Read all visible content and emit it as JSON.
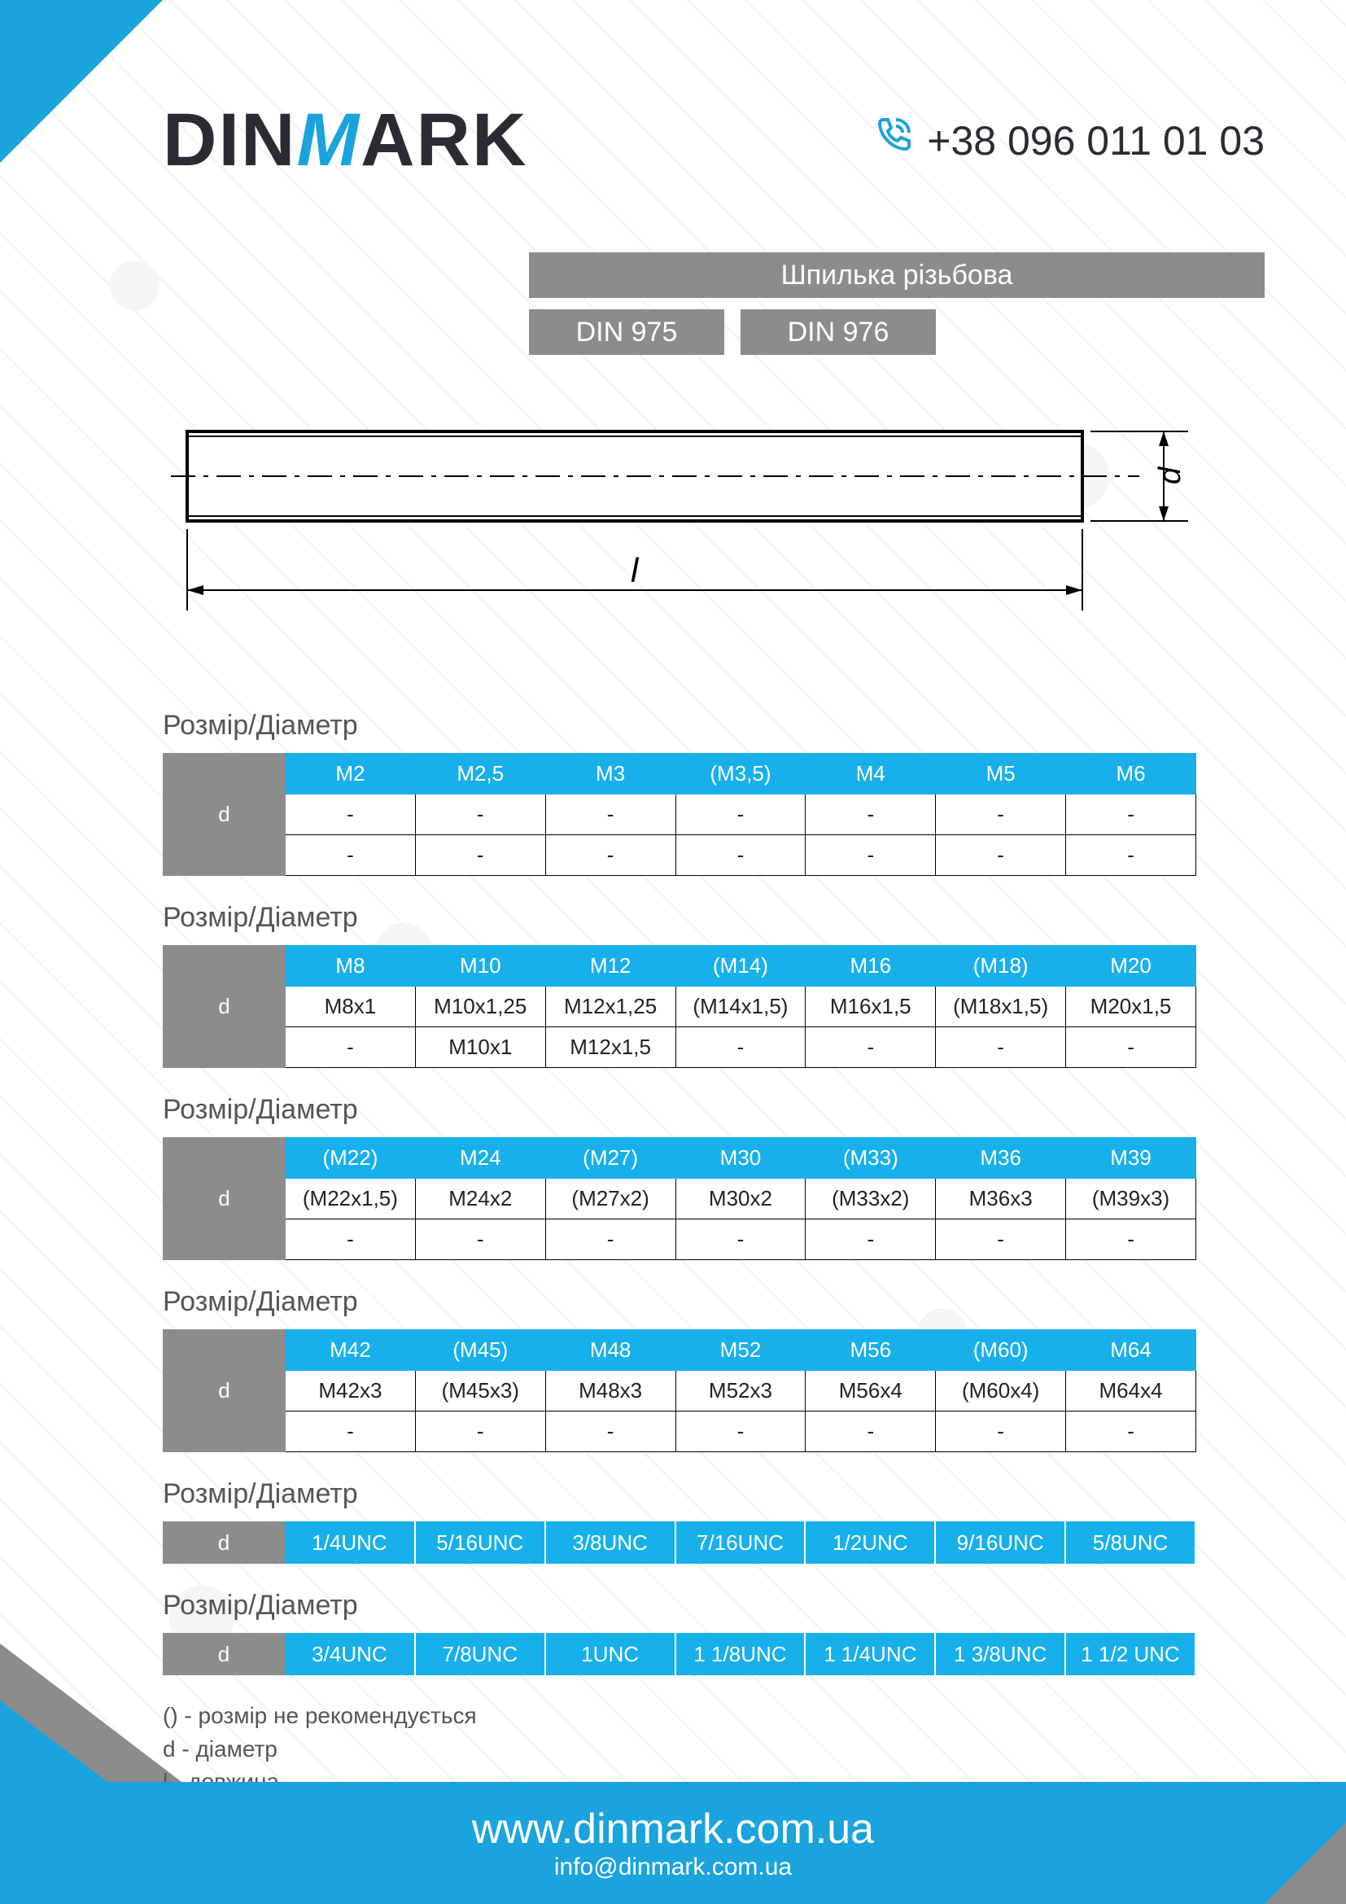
{
  "colors": {
    "brand_blue": "#1aa3dd",
    "brand_gray": "#8c8c8c",
    "dark_text": "#2b2b33",
    "light_gray": "#777777",
    "header_blue": "#18a4de",
    "table_header_blue": "#18b0ea",
    "row_label_gray": "#8c8c8c",
    "footer_blue": "#0f87b8"
  },
  "logo": {
    "pre": "DIN",
    "m": "M",
    "post": "ARK",
    "pre_color": "#2b2b33",
    "m_color": "#1aa3dd",
    "post_color": "#2b2b33"
  },
  "phone": {
    "text": "+38 096 011 01 03",
    "icon": "phone-icon",
    "color": "#2b2b33",
    "icon_color": "#1aa3dd"
  },
  "title": "Шпилька різьбова",
  "din_labels": [
    "DIN 975",
    "DIN 976"
  ],
  "diagram": {
    "l_label": "l",
    "d_label": "d",
    "stroke": "#000000",
    "stroke_width": 3
  },
  "section_title": "Розмір/Діаметр",
  "row_label": "d",
  "tables": [
    {
      "headers": [
        "M2",
        "M2,5",
        "M3",
        "(M3,5)",
        "M4",
        "M5",
        "M6"
      ],
      "rows": [
        [
          "-",
          "-",
          "-",
          "-",
          "-",
          "-",
          "-"
        ],
        [
          "-",
          "-",
          "-",
          "-",
          "-",
          "-",
          "-"
        ]
      ]
    },
    {
      "headers": [
        "M8",
        "M10",
        "M12",
        "(M14)",
        "M16",
        "(M18)",
        "M20"
      ],
      "rows": [
        [
          "M8x1",
          "M10x1,25",
          "M12x1,25",
          "(M14x1,5)",
          "M16x1,5",
          "(M18x1,5)",
          "M20x1,5"
        ],
        [
          "-",
          "M10x1",
          "M12x1,5",
          "-",
          "-",
          "-",
          "-"
        ]
      ]
    },
    {
      "headers": [
        "(M22)",
        "M24",
        "(M27)",
        "M30",
        "(M33)",
        "M36",
        "M39"
      ],
      "rows": [
        [
          "(M22x1,5)",
          "M24x2",
          "(M27x2)",
          "M30x2",
          "(M33x2)",
          "M36x3",
          "(M39x3)"
        ],
        [
          "-",
          "-",
          "-",
          "-",
          "-",
          "-",
          "-"
        ]
      ]
    },
    {
      "headers": [
        "M42",
        "(M45)",
        "M48",
        "M52",
        "M56",
        "(M60)",
        "M64"
      ],
      "rows": [
        [
          "M42x3",
          "(M45x3)",
          "M48x3",
          "M52x3",
          "M56x4",
          "(M60x4)",
          "M64x4"
        ],
        [
          "-",
          "-",
          "-",
          "-",
          "-",
          "-",
          "-"
        ]
      ]
    }
  ],
  "simple_tables": [
    [
      "1/4UNC",
      "5/16UNC",
      "3/8UNC",
      "7/16UNC",
      "1/2UNC",
      "9/16UNC",
      "5/8UNC"
    ],
    [
      "3/4UNC",
      "7/8UNC",
      "1UNC",
      "1 1/8UNC",
      "1 1/4UNC",
      "1 3/8UNC",
      "1 1/2 UNC"
    ]
  ],
  "legend": [
    "() - розмір не рекомендується",
    "d - діаметр",
    "l - довжина"
  ],
  "footer": {
    "url": "www.dinmark.com.ua",
    "email": "info@dinmark.com.ua"
  }
}
